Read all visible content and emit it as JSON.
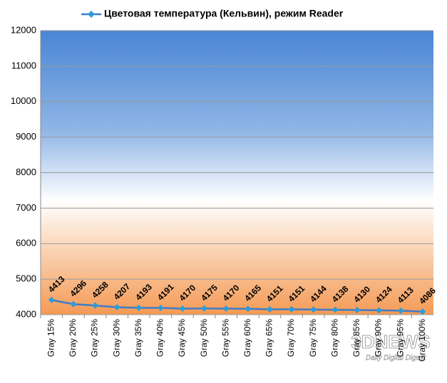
{
  "chart_data": {
    "type": "line",
    "categories": [
      "Gray 15%",
      "Gray 20%",
      "Gray 25%",
      "Gray 30%",
      "Gray 35%",
      "Gray 40%",
      "Gray 45%",
      "Gray 50%",
      "Gray 55%",
      "Gray 60%",
      "Gray 65%",
      "Gray 70%",
      "Gray 75%",
      "Gray 80%",
      "Gray 85%",
      "Gray 90%",
      "Gray 95%",
      "Gray 100%"
    ],
    "series": [
      {
        "name": "Цветовая температура (Кельвин), режим Reader",
        "color": "#3d7cc9",
        "values": [
          4413,
          4296,
          4258,
          4207,
          4193,
          4191,
          4170,
          4175,
          4170,
          4165,
          4151,
          4151,
          4144,
          4138,
          4130,
          4124,
          4113,
          4086
        ]
      }
    ],
    "ylim": [
      4000,
      12000
    ],
    "yticks": [
      4000,
      5000,
      6000,
      7000,
      8000,
      9000,
      10000,
      11000,
      12000
    ],
    "grid": true,
    "legend": "top",
    "data_labels": true,
    "watermark": {
      "title": "3DNEWS",
      "subtitle": "Daily Digital Digest"
    }
  }
}
